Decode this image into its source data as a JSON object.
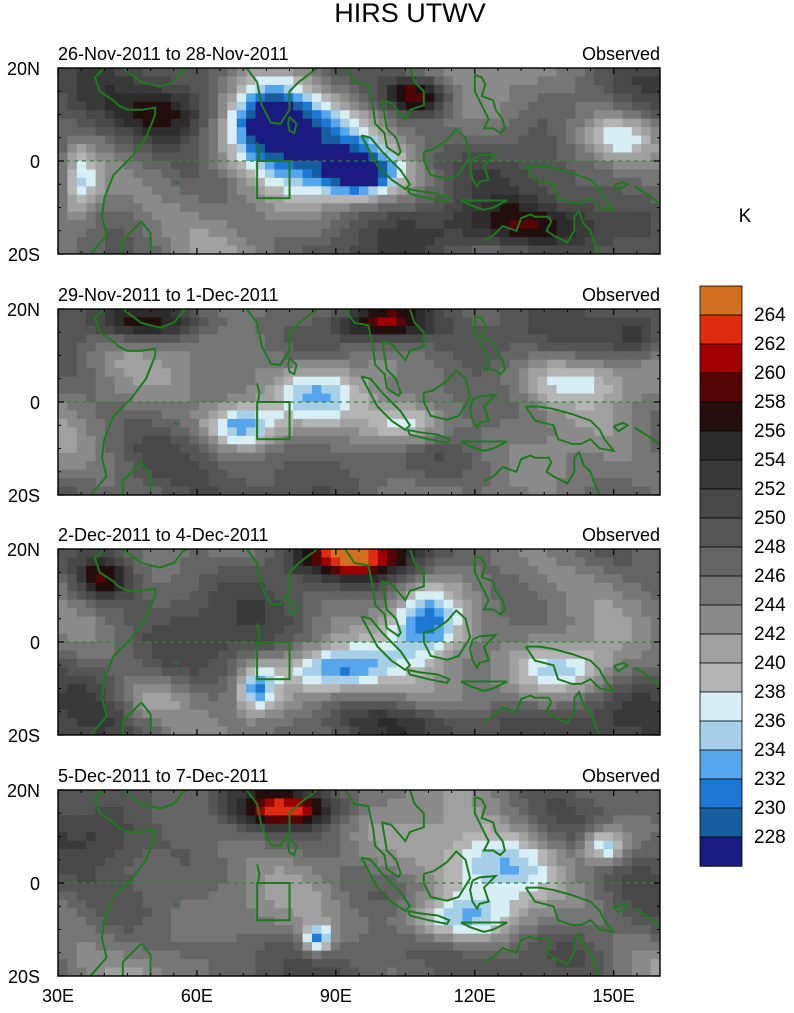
{
  "chart_data": {
    "type": "heatmap",
    "title": "HIRS UTWV",
    "units": "K",
    "x_ticks": [
      "30E",
      "60E",
      "90E",
      "120E",
      "150E"
    ],
    "x_tick_values": [
      30,
      60,
      90,
      120,
      150
    ],
    "xlim": [
      30,
      160
    ],
    "y_ticks": [
      "20N",
      "0",
      "20S"
    ],
    "y_tick_values": [
      20,
      0,
      -20
    ],
    "ylim": [
      -20,
      20
    ],
    "colorbar": {
      "levels": [
        228,
        230,
        232,
        234,
        236,
        238,
        240,
        242,
        244,
        246,
        248,
        250,
        252,
        254,
        256,
        258,
        260,
        262,
        264
      ],
      "labels": [
        "264",
        "262",
        "260",
        "258",
        "256",
        "254",
        "252",
        "250",
        "248",
        "246",
        "244",
        "242",
        "240",
        "238",
        "236",
        "234",
        "232",
        "230",
        "228"
      ],
      "colors": [
        "#1a1a80",
        "#175ea0",
        "#1c78d2",
        "#55a6ec",
        "#a8cfe8",
        "#d6eef4",
        "#b4b4b4",
        "#a0a0a0",
        "#8a8a8a",
        "#767676",
        "#646464",
        "#555555",
        "#484848",
        "#393939",
        "#2c2c2c",
        "#230e0e",
        "#540505",
        "#a00000",
        "#de2c10",
        "#d07020"
      ]
    },
    "panels": [
      {
        "left_label": "26-Nov-2011 to 28-Nov-2011",
        "right_label": "Observed",
        "features": [
          {
            "lon": 82,
            "lat": 4,
            "value": 230,
            "sx": 14,
            "sy": 10
          },
          {
            "lon": 75,
            "lat": 10,
            "value": 232,
            "sx": 8,
            "sy": 8
          },
          {
            "lon": 95,
            "lat": -3,
            "value": 230,
            "sx": 8,
            "sy": 5
          },
          {
            "lon": 108,
            "lat": 14,
            "value": 262,
            "sx": 7,
            "sy": 4
          },
          {
            "lon": 55,
            "lat": 10,
            "value": 256,
            "sx": 10,
            "sy": 6
          },
          {
            "lon": 130,
            "lat": -14,
            "value": 256,
            "sx": 20,
            "sy": 5
          },
          {
            "lon": 150,
            "lat": 5,
            "value": 236,
            "sx": 10,
            "sy": 6
          },
          {
            "lon": 35,
            "lat": -5,
            "value": 236,
            "sx": 4,
            "sy": 8
          }
        ]
      },
      {
        "left_label": "29-Nov-2011 to 1-Dec-2011",
        "right_label": "Observed",
        "features": [
          {
            "lon": 88,
            "lat": 2,
            "value": 232,
            "sx": 12,
            "sy": 7
          },
          {
            "lon": 70,
            "lat": -5,
            "value": 232,
            "sx": 8,
            "sy": 5
          },
          {
            "lon": 105,
            "lat": -5,
            "value": 232,
            "sx": 9,
            "sy": 5
          },
          {
            "lon": 100,
            "lat": 17,
            "value": 262,
            "sx": 10,
            "sy": 4
          },
          {
            "lon": 50,
            "lat": 17,
            "value": 258,
            "sx": 14,
            "sy": 4
          },
          {
            "lon": 130,
            "lat": -12,
            "value": 248,
            "sx": 15,
            "sy": 5
          },
          {
            "lon": 140,
            "lat": 5,
            "value": 236,
            "sx": 15,
            "sy": 6
          },
          {
            "lon": 155,
            "lat": 14,
            "value": 254,
            "sx": 6,
            "sy": 5
          }
        ]
      },
      {
        "left_label": "2-Dec-2011 to 4-Dec-2011",
        "right_label": "Observed",
        "features": [
          {
            "lon": 110,
            "lat": 4,
            "value": 230,
            "sx": 8,
            "sy": 8
          },
          {
            "lon": 90,
            "lat": -6,
            "value": 232,
            "sx": 12,
            "sy": 5
          },
          {
            "lon": 73,
            "lat": -10,
            "value": 234,
            "sx": 4,
            "sy": 5
          },
          {
            "lon": 95,
            "lat": 18,
            "value": 260,
            "sx": 14,
            "sy": 4
          },
          {
            "lon": 40,
            "lat": 14,
            "value": 258,
            "sx": 6,
            "sy": 5
          },
          {
            "lon": 110,
            "lat": -18,
            "value": 254,
            "sx": 25,
            "sy": 4
          },
          {
            "lon": 140,
            "lat": -6,
            "value": 236,
            "sx": 12,
            "sy": 6
          },
          {
            "lon": 50,
            "lat": -12,
            "value": 240,
            "sx": 8,
            "sy": 5
          }
        ]
      },
      {
        "left_label": "5-Dec-2011 to 7-Dec-2011",
        "right_label": "Observed",
        "features": [
          {
            "lon": 125,
            "lat": 3,
            "value": 232,
            "sx": 14,
            "sy": 9
          },
          {
            "lon": 115,
            "lat": -8,
            "value": 234,
            "sx": 14,
            "sy": 5
          },
          {
            "lon": 86,
            "lat": -12,
            "value": 232,
            "sx": 3,
            "sy": 3
          },
          {
            "lon": 80,
            "lat": 16,
            "value": 260,
            "sx": 12,
            "sy": 4
          },
          {
            "lon": 40,
            "lat": 10,
            "value": 252,
            "sx": 8,
            "sy": 6
          },
          {
            "lon": 140,
            "lat": -14,
            "value": 248,
            "sx": 12,
            "sy": 5
          },
          {
            "lon": 65,
            "lat": -14,
            "value": 250,
            "sx": 10,
            "sy": 4
          },
          {
            "lon": 148,
            "lat": 8,
            "value": 232,
            "sx": 5,
            "sy": 4
          }
        ]
      }
    ]
  }
}
